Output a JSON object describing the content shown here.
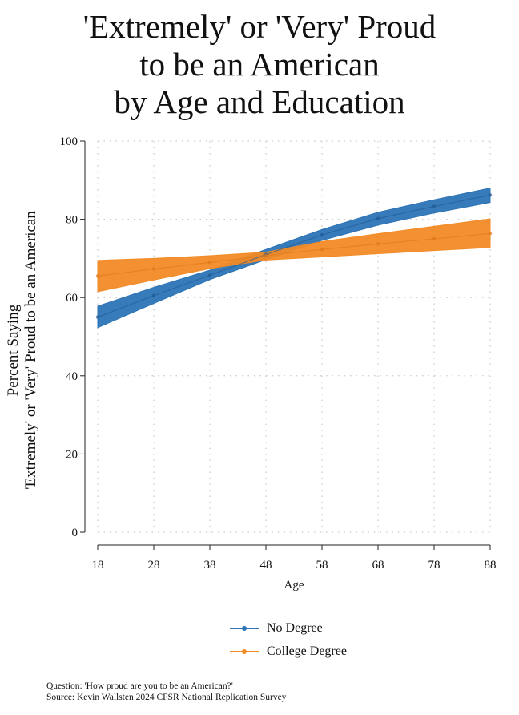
{
  "colors": {
    "no_degree": "#2d74b6",
    "college_degree": "#f28a26"
  },
  "chart_data": {
    "type": "line",
    "title": [
      "'Extremely' or 'Very' Proud",
      "to be an American",
      "by Age and Education"
    ],
    "xlabel": "Age",
    "ylabel": [
      "Percent Saying",
      "'Extremely' or 'Very' Proud to be an American"
    ],
    "x": [
      18,
      28,
      38,
      48,
      58,
      68,
      78,
      88
    ],
    "xlim": [
      18,
      88
    ],
    "ylim": [
      0,
      100
    ],
    "yticks": [
      0,
      20,
      40,
      60,
      80,
      100
    ],
    "grid": true,
    "series": [
      {
        "name": "No Degree",
        "color": "#2d74b6",
        "values": [
          55,
          60.5,
          65.7,
          71,
          76,
          80.2,
          83.3,
          86.2
        ],
        "lower": [
          52.3,
          58.5,
          64.6,
          69.7,
          74.6,
          78.5,
          81.6,
          84.3
        ],
        "upper": [
          57.8,
          62.6,
          67.0,
          72.3,
          77.4,
          81.8,
          85.0,
          88.0
        ]
      },
      {
        "name": "College Degree",
        "color": "#f28a26",
        "values": [
          65.5,
          67.3,
          69.0,
          70.7,
          72.3,
          73.7,
          75.0,
          76.4
        ],
        "lower": [
          61.5,
          64.5,
          67.4,
          69.6,
          70.4,
          71.2,
          72.0,
          72.8
        ],
        "upper": [
          69.5,
          70.0,
          70.7,
          71.6,
          74.3,
          76.3,
          78.2,
          80.1
        ]
      }
    ]
  },
  "legend": [
    "No Degree",
    "College Degree"
  ],
  "note": {
    "question": "Question: 'How proud are you to be an American?'",
    "source": "Source: Kevin Wallsten 2024 CFSR National Replication Survey"
  }
}
